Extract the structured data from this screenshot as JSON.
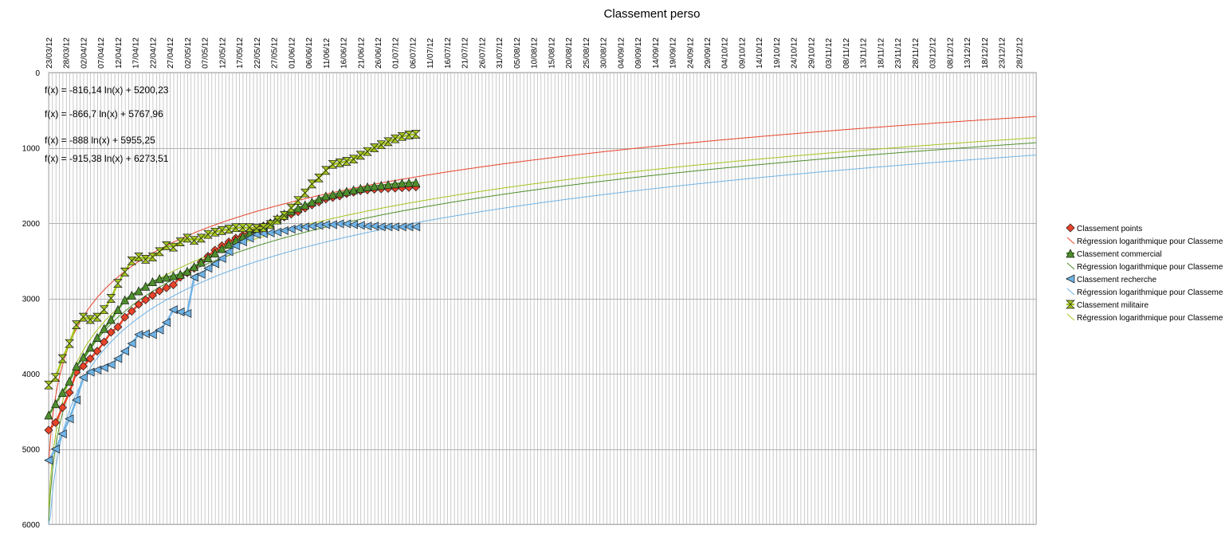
{
  "chart_data": {
    "type": "line",
    "title": "Classement perso",
    "xlabel": "",
    "ylabel": "",
    "y_reversed": true,
    "ylim": [
      0,
      6000
    ],
    "y_ticks": [
      0,
      1000,
      2000,
      3000,
      4000,
      5000,
      6000
    ],
    "grid": true,
    "legend_position": "right",
    "x_tick_labels": [
      "23/03/12",
      "28/03/12",
      "02/04/12",
      "07/04/12",
      "12/04/12",
      "17/04/12",
      "22/04/12",
      "27/04/12",
      "02/05/12",
      "07/05/12",
      "12/05/12",
      "17/05/12",
      "22/05/12",
      "27/05/12",
      "01/06/12",
      "06/06/12",
      "11/06/12",
      "16/06/12",
      "21/06/12",
      "26/06/12",
      "01/07/12",
      "06/07/12",
      "11/07/12",
      "16/07/12",
      "21/07/12",
      "26/07/12",
      "31/07/12",
      "05/08/12",
      "10/08/12",
      "15/08/12",
      "20/08/12",
      "25/08/12",
      "30/08/12",
      "04/09/12",
      "09/09/12",
      "14/09/12",
      "19/09/12",
      "24/09/12",
      "29/09/12",
      "04/10/12",
      "09/10/12",
      "14/10/12",
      "19/10/12",
      "24/10/12",
      "29/10/12",
      "03/11/12",
      "08/11/12",
      "13/11/12",
      "18/11/12",
      "23/11/12",
      "28/11/12",
      "03/12/12",
      "08/12/12",
      "13/12/12",
      "18/12/12",
      "23/12/12",
      "28/12/12"
    ],
    "x_range_days": [
      0,
      285
    ],
    "equations": [
      "f(x) = -816,14 ln(x) + 5200,23",
      "f(x) = -866,7 ln(x) + 5767,96",
      "f(x) = -888 ln(x) + 5955,25",
      "f(x) = -915,38 ln(x) + 6273,51"
    ],
    "series": [
      {
        "name": "Classement points",
        "color": "#e8432a",
        "marker": "diamond",
        "x_days": [
          0,
          2,
          4,
          6,
          8,
          10,
          12,
          14,
          16,
          18,
          20,
          22,
          24,
          26,
          28,
          30,
          32,
          34,
          36,
          38,
          40,
          42,
          44,
          46,
          48,
          50,
          52,
          54,
          56,
          58,
          60,
          62,
          64,
          66,
          68,
          70,
          72,
          74,
          76,
          78,
          80,
          82,
          84,
          86,
          88,
          90,
          92,
          94,
          96,
          98,
          100,
          102,
          104,
          106
        ],
        "values": [
          4750,
          4650,
          4450,
          4250,
          3980,
          3900,
          3800,
          3700,
          3580,
          3450,
          3380,
          3250,
          3170,
          3080,
          3020,
          2960,
          2900,
          2860,
          2820,
          2720,
          2660,
          2600,
          2520,
          2440,
          2360,
          2300,
          2250,
          2200,
          2160,
          2110,
          2070,
          2040,
          2000,
          1960,
          1920,
          1880,
          1850,
          1800,
          1760,
          1720,
          1680,
          1660,
          1640,
          1610,
          1590,
          1570,
          1560,
          1550,
          1545,
          1540,
          1535,
          1530,
          1525,
          1520
        ]
      },
      {
        "name": "Régression logarithmique pour Classement points",
        "color": "#e8432a",
        "marker": "none",
        "equation": "f(x) = -816,14 ln(x) + 5200,23",
        "fit": {
          "a": -816.14,
          "b": 5200.23
        }
      },
      {
        "name": "Classement commercial",
        "color": "#4e8f2c",
        "marker": "triangle",
        "x_days": [
          0,
          2,
          4,
          6,
          8,
          10,
          12,
          14,
          16,
          18,
          20,
          22,
          24,
          26,
          28,
          30,
          32,
          34,
          36,
          38,
          40,
          42,
          44,
          46,
          48,
          50,
          52,
          54,
          56,
          58,
          60,
          62,
          64,
          66,
          68,
          70,
          72,
          74,
          76,
          78,
          80,
          82,
          84,
          86,
          88,
          90,
          92,
          94,
          96,
          98,
          100,
          102,
          104,
          106
        ],
        "values": [
          4550,
          4400,
          4250,
          4100,
          3900,
          3780,
          3650,
          3520,
          3400,
          3280,
          3150,
          3020,
          2960,
          2900,
          2840,
          2780,
          2740,
          2720,
          2700,
          2680,
          2640,
          2580,
          2520,
          2460,
          2400,
          2340,
          2280,
          2230,
          2180,
          2130,
          2080,
          2040,
          2000,
          1940,
          1880,
          1840,
          1800,
          1760,
          1720,
          1680,
          1640,
          1620,
          1600,
          1580,
          1560,
          1540,
          1520,
          1510,
          1500,
          1490,
          1480,
          1470,
          1465,
          1460
        ]
      },
      {
        "name": "Régression logarithmique pour Classement commercial",
        "color": "#4e8f2c",
        "marker": "none",
        "equation": "f(x) = -888 ln(x) + 5955,25",
        "fit": {
          "a": -888,
          "b": 5955.25
        }
      },
      {
        "name": "Classement recherche",
        "color": "#6fb3e6",
        "marker": "triangle-left",
        "x_days": [
          0,
          2,
          4,
          6,
          8,
          10,
          12,
          14,
          16,
          18,
          20,
          22,
          24,
          26,
          28,
          30,
          32,
          34,
          36,
          38,
          40,
          42,
          44,
          46,
          48,
          50,
          52,
          54,
          56,
          58,
          60,
          62,
          64,
          66,
          68,
          70,
          72,
          74,
          76,
          78,
          80,
          82,
          84,
          86,
          88,
          90,
          92,
          94,
          96,
          98,
          100,
          102,
          104,
          106
        ],
        "values": [
          5150,
          5000,
          4800,
          4600,
          4350,
          4050,
          3980,
          3950,
          3920,
          3880,
          3800,
          3700,
          3600,
          3480,
          3470,
          3480,
          3420,
          3320,
          3150,
          3180,
          3200,
          2720,
          2680,
          2600,
          2540,
          2470,
          2380,
          2300,
          2250,
          2200,
          2150,
          2140,
          2130,
          2120,
          2100,
          2080,
          2060,
          2050,
          2040,
          2030,
          2020,
          2020,
          2010,
          2010,
          2020,
          2030,
          2040,
          2040,
          2050,
          2050,
          2050,
          2050,
          2050,
          2050
        ]
      },
      {
        "name": "Régression logarithmique pour Classement recherche",
        "color": "#6fb3e6",
        "marker": "none",
        "equation": "f(x) = -915,38 ln(x) + 6273,51",
        "fit": {
          "a": -915.38,
          "b": 6273.51
        }
      },
      {
        "name": "Classement militaire",
        "color": "#a4c51e",
        "marker": "hourglass",
        "x_days": [
          0,
          2,
          4,
          6,
          8,
          10,
          12,
          14,
          16,
          18,
          20,
          22,
          24,
          26,
          28,
          30,
          32,
          34,
          36,
          38,
          40,
          42,
          44,
          46,
          48,
          50,
          52,
          54,
          56,
          58,
          60,
          62,
          64,
          66,
          68,
          70,
          72,
          74,
          76,
          78,
          80,
          82,
          84,
          86,
          88,
          90,
          92,
          94,
          96,
          98,
          100,
          102,
          104,
          106
        ],
        "values": [
          4150,
          4050,
          3800,
          3600,
          3350,
          3250,
          3280,
          3250,
          3150,
          3000,
          2800,
          2650,
          2500,
          2450,
          2480,
          2450,
          2380,
          2300,
          2320,
          2250,
          2200,
          2230,
          2200,
          2150,
          2120,
          2100,
          2080,
          2060,
          2060,
          2060,
          2070,
          2060,
          2020,
          1960,
          1900,
          1800,
          1700,
          1600,
          1480,
          1400,
          1300,
          1220,
          1200,
          1180,
          1150,
          1100,
          1050,
          1000,
          960,
          920,
          880,
          850,
          830,
          820
        ]
      },
      {
        "name": "Régression logarithmique pour Classement militaire",
        "color": "#a4c51e",
        "marker": "none",
        "equation": "f(x) = -866,7 ln(x) + 5767,96",
        "fit": {
          "a": -866.7,
          "b": 5767.96
        }
      }
    ],
    "legend_labels_visible": [
      "Classement points",
      "Régression logarithmique pour Classeme",
      "Classement commercial",
      "Régression logarithmique pour Classeme",
      "Classement recherche",
      "Régression logarithmique pour Classeme",
      "Classement militaire",
      "Régression logarithmique pour Classeme"
    ]
  }
}
